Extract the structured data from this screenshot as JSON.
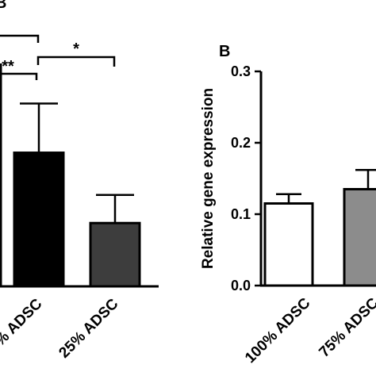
{
  "panel_labels": {
    "a": "B",
    "b": "B"
  },
  "chart_data": [
    {
      "type": "bar",
      "panel": "B",
      "categories": [
        "% ADSC",
        "25% ADSC"
      ],
      "values": [
        0.19,
        0.09
      ],
      "errors": [
        0.07,
        0.04
      ],
      "colors": [
        "#000000",
        "#3d3d3d"
      ],
      "ylim": [
        0,
        0.3
      ],
      "significance": [
        {
          "label": "**",
          "bar": 0
        },
        {
          "label": "*",
          "bar": 1
        }
      ]
    },
    {
      "type": "bar",
      "panel": "B",
      "ylabel": "Relative gene expression",
      "yticks": [
        "0.0",
        "0.1",
        "0.2",
        "0.3"
      ],
      "ylim": [
        0,
        0.3
      ],
      "categories": [
        "100% ADSC",
        "75% ADSC"
      ],
      "values": [
        0.115,
        0.135
      ],
      "errors": [
        0.013,
        0.027
      ],
      "colors": [
        "#ffffff",
        "#8c8c8c"
      ]
    }
  ]
}
